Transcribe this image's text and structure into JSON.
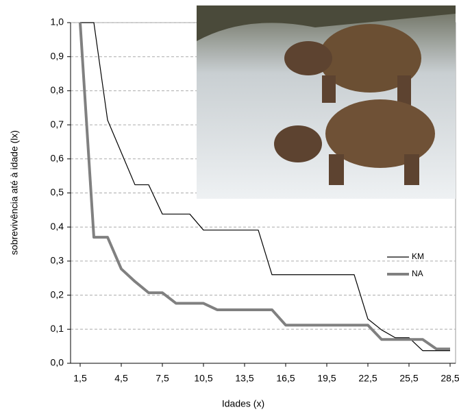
{
  "chart_data": {
    "type": "line",
    "xlabel": "Idades (x)",
    "ylabel": "sobrevivência até à idade (lx)",
    "xlim": [
      0.8,
      28.9
    ],
    "ylim": [
      0,
      1
    ],
    "xticks": [
      {
        "value": 1.5,
        "label": "1,5"
      },
      {
        "value": 4.5,
        "label": "4,5"
      },
      {
        "value": 7.5,
        "label": "7,5"
      },
      {
        "value": 10.5,
        "label": "10,5"
      },
      {
        "value": 13.5,
        "label": "13,5"
      },
      {
        "value": 16.5,
        "label": "16,5"
      },
      {
        "value": 19.5,
        "label": "19,5"
      },
      {
        "value": 22.5,
        "label": "22,5"
      },
      {
        "value": 25.5,
        "label": "25,5"
      },
      {
        "value": 28.5,
        "label": "28,5"
      }
    ],
    "yticks": [
      {
        "value": 0,
        "label": "0,0"
      },
      {
        "value": 0.1,
        "label": "0,1"
      },
      {
        "value": 0.2,
        "label": "0,2"
      },
      {
        "value": 0.3,
        "label": "0,3"
      },
      {
        "value": 0.4,
        "label": "0,4"
      },
      {
        "value": 0.5,
        "label": "0,5"
      },
      {
        "value": 0.6,
        "label": "0,6"
      },
      {
        "value": 0.7,
        "label": "0,7"
      },
      {
        "value": 0.8,
        "label": "0,8"
      },
      {
        "value": 0.9,
        "label": "0,9"
      },
      {
        "value": 1,
        "label": "1,0"
      }
    ],
    "grid": true,
    "legend": "right",
    "series": [
      {
        "name": "KM",
        "color": "#000000",
        "x": [
          1.5,
          2.5,
          3.5,
          4.5,
          5.5,
          6.5,
          7.5,
          9.5,
          10.5,
          14.5,
          15.5,
          21.5,
          22.5,
          23.5,
          24.5,
          25.5,
          26.5,
          28.5
        ],
        "values": [
          1.0,
          1.0,
          0.714,
          0.619,
          0.524,
          0.524,
          0.438,
          0.438,
          0.391,
          0.391,
          0.26,
          0.26,
          0.13,
          0.098,
          0.075,
          0.075,
          0.037,
          0.037
        ]
      },
      {
        "name": "NA",
        "color": "#808080",
        "x": [
          1.5,
          2.5,
          3.5,
          4.5,
          5.5,
          6.5,
          7.5,
          8.5,
          10.5,
          11.5,
          15.5,
          16.5,
          22.5,
          23.5,
          26.5,
          27.5,
          28.5
        ],
        "values": [
          1.0,
          0.37,
          0.37,
          0.277,
          0.24,
          0.207,
          0.207,
          0.176,
          0.176,
          0.157,
          0.157,
          0.112,
          0.112,
          0.07,
          0.07,
          0.042,
          0.042
        ]
      }
    ]
  }
}
